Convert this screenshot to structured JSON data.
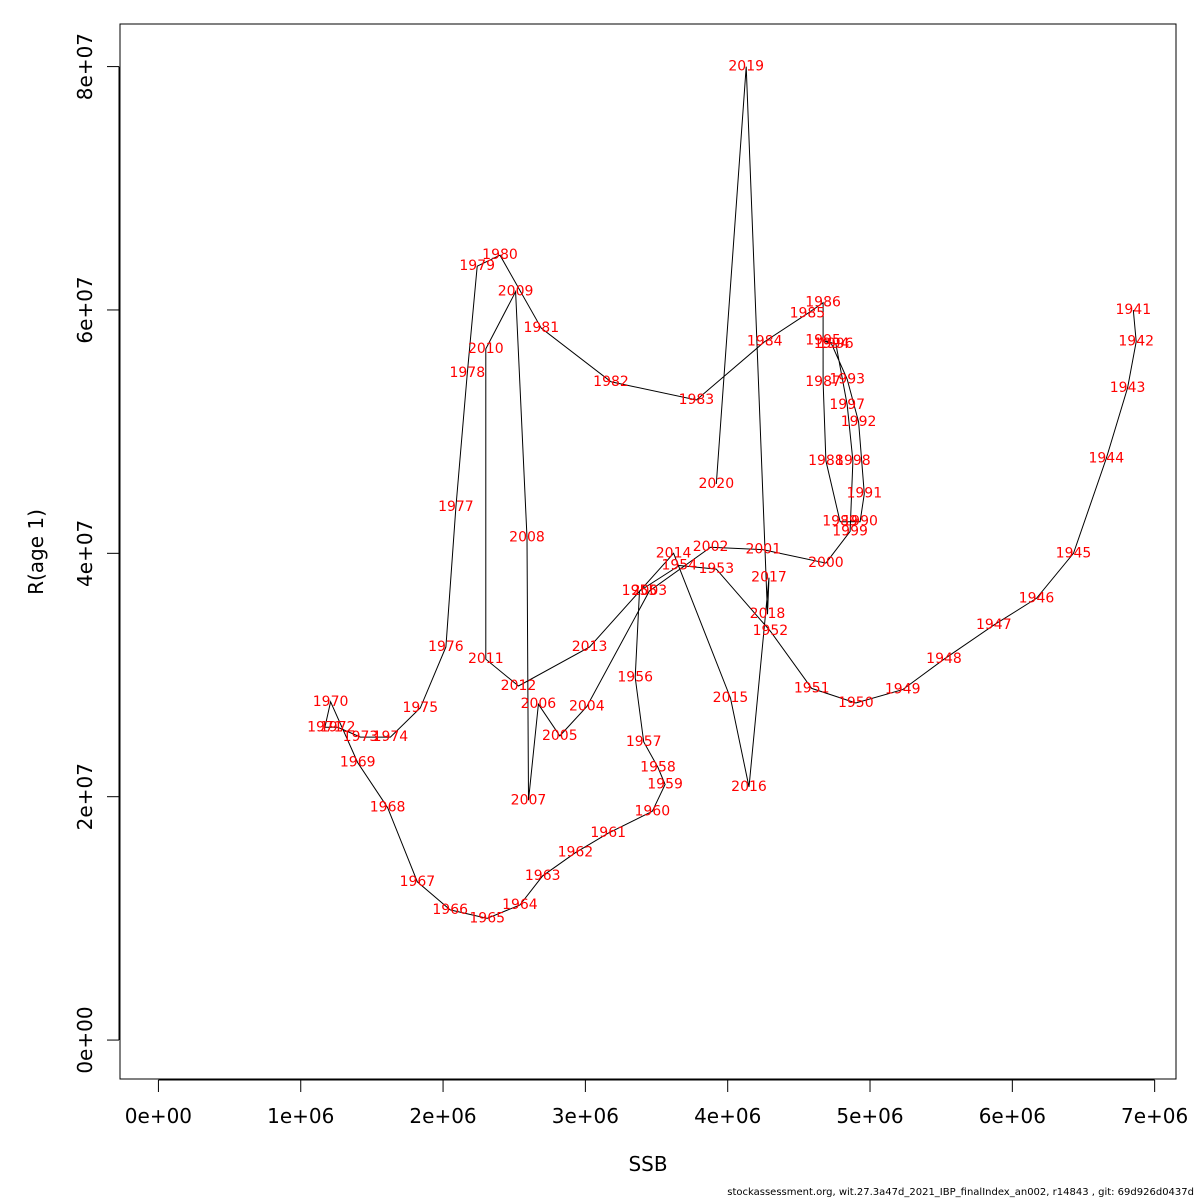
{
  "footer": "stockassessment.org, wit.27.3a47d_2021_IBP_finalIndex_an002, r14843 , git: 69d926d0437d",
  "chart_data": {
    "type": "line",
    "xlabel": "SSB",
    "ylabel": "R(age 1)",
    "xlim": [
      -270000,
      7150000
    ],
    "ylim": [
      -3200000,
      83500000
    ],
    "x_ticks": [
      0,
      1000000,
      2000000,
      3000000,
      4000000,
      5000000,
      6000000,
      7000000
    ],
    "x_tick_labels": [
      "0e+00",
      "1e+06",
      "2e+06",
      "3e+06",
      "4e+06",
      "5e+06",
      "6e+06",
      "7e+06"
    ],
    "y_ticks": [
      0,
      20000000,
      40000000,
      60000000,
      80000000
    ],
    "y_tick_labels": [
      "0e+00",
      "2e+07",
      "4e+07",
      "6e+07",
      "8e+07"
    ],
    "line_color": "#000000",
    "label_color": "#ff0000",
    "grid": false,
    "points": [
      {
        "year": "1941",
        "x": 6850000,
        "y": 60000000
      },
      {
        "year": "1942",
        "x": 6870000,
        "y": 57400000
      },
      {
        "year": "1943",
        "x": 6810000,
        "y": 53600000
      },
      {
        "year": "1944",
        "x": 6660000,
        "y": 47800000
      },
      {
        "year": "1945",
        "x": 6430000,
        "y": 40000000
      },
      {
        "year": "1946",
        "x": 6170000,
        "y": 36300000
      },
      {
        "year": "1947",
        "x": 5870000,
        "y": 34100000
      },
      {
        "year": "1948",
        "x": 5520000,
        "y": 31300000
      },
      {
        "year": "1949",
        "x": 5230000,
        "y": 28800000
      },
      {
        "year": "1950",
        "x": 4900000,
        "y": 27700000
      },
      {
        "year": "1951",
        "x": 4590000,
        "y": 28900000
      },
      {
        "year": "1952",
        "x": 4300000,
        "y": 33600000
      },
      {
        "year": "1953",
        "x": 3920000,
        "y": 38700000
      },
      {
        "year": "1954",
        "x": 3660000,
        "y": 39000000
      },
      {
        "year": "1955",
        "x": 3380000,
        "y": 36900000
      },
      {
        "year": "1956",
        "x": 3350000,
        "y": 29800000
      },
      {
        "year": "1957",
        "x": 3410000,
        "y": 24500000
      },
      {
        "year": "1958",
        "x": 3510000,
        "y": 22400000
      },
      {
        "year": "1959",
        "x": 3560000,
        "y": 21000000
      },
      {
        "year": "1960",
        "x": 3470000,
        "y": 18800000
      },
      {
        "year": "1961",
        "x": 3160000,
        "y": 17000000
      },
      {
        "year": "1962",
        "x": 2930000,
        "y": 15400000
      },
      {
        "year": "1963",
        "x": 2700000,
        "y": 13500000
      },
      {
        "year": "1964",
        "x": 2540000,
        "y": 11100000
      },
      {
        "year": "1965",
        "x": 2310000,
        "y": 10000000
      },
      {
        "year": "1966",
        "x": 2050000,
        "y": 10700000
      },
      {
        "year": "1967",
        "x": 1820000,
        "y": 13000000
      },
      {
        "year": "1968",
        "x": 1610000,
        "y": 19100000
      },
      {
        "year": "1969",
        "x": 1400000,
        "y": 22800000
      },
      {
        "year": "1970",
        "x": 1210000,
        "y": 27800000
      },
      {
        "year": "1971",
        "x": 1170000,
        "y": 25700000
      },
      {
        "year": "1972",
        "x": 1260000,
        "y": 25700000
      },
      {
        "year": "1973",
        "x": 1420000,
        "y": 24900000
      },
      {
        "year": "1974",
        "x": 1630000,
        "y": 24900000
      },
      {
        "year": "1975",
        "x": 1840000,
        "y": 27300000
      },
      {
        "year": "1976",
        "x": 2020000,
        "y": 32300000
      },
      {
        "year": "1977",
        "x": 2090000,
        "y": 43800000
      },
      {
        "year": "1978",
        "x": 2170000,
        "y": 54800000
      },
      {
        "year": "1979",
        "x": 2240000,
        "y": 63600000
      },
      {
        "year": "1980",
        "x": 2400000,
        "y": 64500000
      },
      {
        "year": "1981",
        "x": 2690000,
        "y": 58500000
      },
      {
        "year": "1982",
        "x": 3180000,
        "y": 54100000
      },
      {
        "year": "1983",
        "x": 3780000,
        "y": 52600000
      },
      {
        "year": "1984",
        "x": 4260000,
        "y": 57400000
      },
      {
        "year": "1985",
        "x": 4560000,
        "y": 59700000
      },
      {
        "year": "1986",
        "x": 4670000,
        "y": 60600000
      },
      {
        "year": "1987",
        "x": 4670000,
        "y": 54100000
      },
      {
        "year": "1988",
        "x": 4690000,
        "y": 47600000
      },
      {
        "year": "1989",
        "x": 4790000,
        "y": 42600000
      },
      {
        "year": "1990",
        "x": 4930000,
        "y": 42600000
      },
      {
        "year": "1991",
        "x": 4960000,
        "y": 44900000
      },
      {
        "year": "1992",
        "x": 4920000,
        "y": 50800000
      },
      {
        "year": "1993",
        "x": 4840000,
        "y": 54300000
      },
      {
        "year": "1994",
        "x": 4730000,
        "y": 57200000
      },
      {
        "year": "1995",
        "x": 4670000,
        "y": 57500000
      },
      {
        "year": "1996",
        "x": 4760000,
        "y": 57200000
      },
      {
        "year": "1997",
        "x": 4840000,
        "y": 52200000
      },
      {
        "year": "1998",
        "x": 4880000,
        "y": 47600000
      },
      {
        "year": "1999",
        "x": 4860000,
        "y": 41800000
      },
      {
        "year": "2000",
        "x": 4690000,
        "y": 39200000
      },
      {
        "year": "2001",
        "x": 4250000,
        "y": 40300000
      },
      {
        "year": "2002",
        "x": 3880000,
        "y": 40500000
      },
      {
        "year": "2003",
        "x": 3450000,
        "y": 36900000
      },
      {
        "year": "2004",
        "x": 3010000,
        "y": 27400000
      },
      {
        "year": "2005",
        "x": 2820000,
        "y": 25000000
      },
      {
        "year": "2006",
        "x": 2670000,
        "y": 27600000
      },
      {
        "year": "2007",
        "x": 2600000,
        "y": 19700000
      },
      {
        "year": "2008",
        "x": 2590000,
        "y": 41300000
      },
      {
        "year": "2009",
        "x": 2510000,
        "y": 61500000
      },
      {
        "year": "2010",
        "x": 2300000,
        "y": 56800000
      },
      {
        "year": "2011",
        "x": 2300000,
        "y": 31300000
      },
      {
        "year": "2012",
        "x": 2530000,
        "y": 29100000
      },
      {
        "year": "2013",
        "x": 3030000,
        "y": 32300000
      },
      {
        "year": "2014",
        "x": 3620000,
        "y": 40000000
      },
      {
        "year": "2015",
        "x": 4020000,
        "y": 28100000
      },
      {
        "year": "2016",
        "x": 4150000,
        "y": 20800000
      },
      {
        "year": "2017",
        "x": 4290000,
        "y": 38000000
      },
      {
        "year": "2018",
        "x": 4280000,
        "y": 35000000
      },
      {
        "year": "2019",
        "x": 4130000,
        "y": 80000000
      },
      {
        "year": "2020",
        "x": 3920000,
        "y": 45700000
      }
    ]
  }
}
